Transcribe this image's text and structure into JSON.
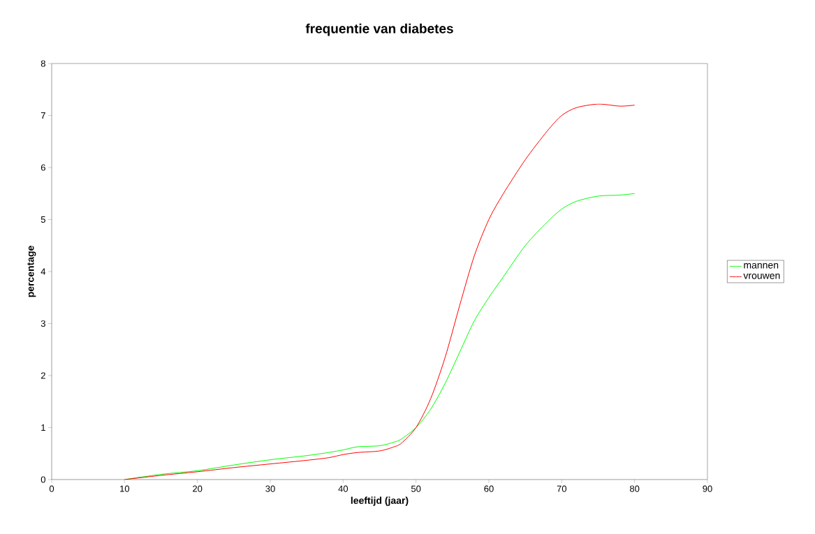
{
  "chart_data": {
    "type": "line",
    "title": "frequentie van diabetes",
    "xlabel": "leeftijd (jaar)",
    "ylabel": "percentage",
    "x": [
      10,
      15,
      20,
      25,
      30,
      35,
      38,
      40,
      42,
      45,
      47,
      48,
      50,
      52,
      54,
      56,
      58,
      60,
      62,
      65,
      68,
      70,
      72,
      75,
      78,
      80
    ],
    "series": [
      {
        "name": "mannen",
        "color": "#00ff00",
        "values": [
          0,
          0.1,
          0.17,
          0.28,
          0.38,
          0.46,
          0.52,
          0.57,
          0.63,
          0.65,
          0.72,
          0.78,
          1.0,
          1.35,
          1.85,
          2.45,
          3.05,
          3.5,
          3.9,
          4.5,
          4.95,
          5.2,
          5.35,
          5.45,
          5.47,
          5.5
        ]
      },
      {
        "name": "vrouwen",
        "color": "#ff0000",
        "values": [
          0,
          0.08,
          0.15,
          0.23,
          0.3,
          0.37,
          0.42,
          0.48,
          0.52,
          0.55,
          0.63,
          0.7,
          1.0,
          1.55,
          2.35,
          3.35,
          4.3,
          5.0,
          5.5,
          6.15,
          6.7,
          7.0,
          7.15,
          7.22,
          7.18,
          7.2
        ]
      }
    ],
    "xlim": [
      0,
      90
    ],
    "ylim": [
      0,
      8
    ],
    "xticks": [
      0,
      10,
      20,
      30,
      40,
      50,
      60,
      70,
      80,
      90
    ],
    "yticks": [
      0,
      1,
      2,
      3,
      4,
      5,
      6,
      7,
      8
    ],
    "grid": false,
    "legend": "right"
  }
}
